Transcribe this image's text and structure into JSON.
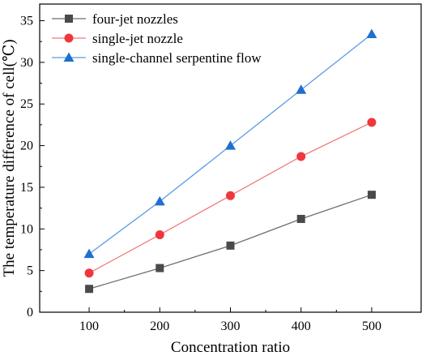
{
  "chart_data": {
    "type": "line",
    "title": "",
    "xlabel": "Concentration ratio",
    "ylabel": "The temperature difference of cell(℃)",
    "x": [
      100,
      200,
      300,
      400,
      500
    ],
    "xlim": [
      30,
      570
    ],
    "ylim": [
      0,
      37
    ],
    "x_ticks": [
      100,
      200,
      300,
      400,
      500
    ],
    "y_ticks": [
      0,
      5,
      10,
      15,
      20,
      25,
      30,
      35
    ],
    "grid": false,
    "legend_position": "top-left",
    "series": [
      {
        "name": "four-jet nozzles",
        "values": [
          2.8,
          5.3,
          8.0,
          11.2,
          14.1
        ],
        "color": "#4a4a4a",
        "line_color": "#6e6e6e",
        "marker": "square"
      },
      {
        "name": "single-jet nozzle",
        "values": [
          4.7,
          9.3,
          14.0,
          18.7,
          22.8
        ],
        "color": "#f0373c",
        "line_color": "#f07a7e",
        "marker": "circle"
      },
      {
        "name": "single-channel serpentine flow",
        "values": [
          7.0,
          13.3,
          20.0,
          26.7,
          33.4
        ],
        "color": "#1f6fd0",
        "line_color": "#5b9ae4",
        "marker": "triangle"
      }
    ]
  }
}
